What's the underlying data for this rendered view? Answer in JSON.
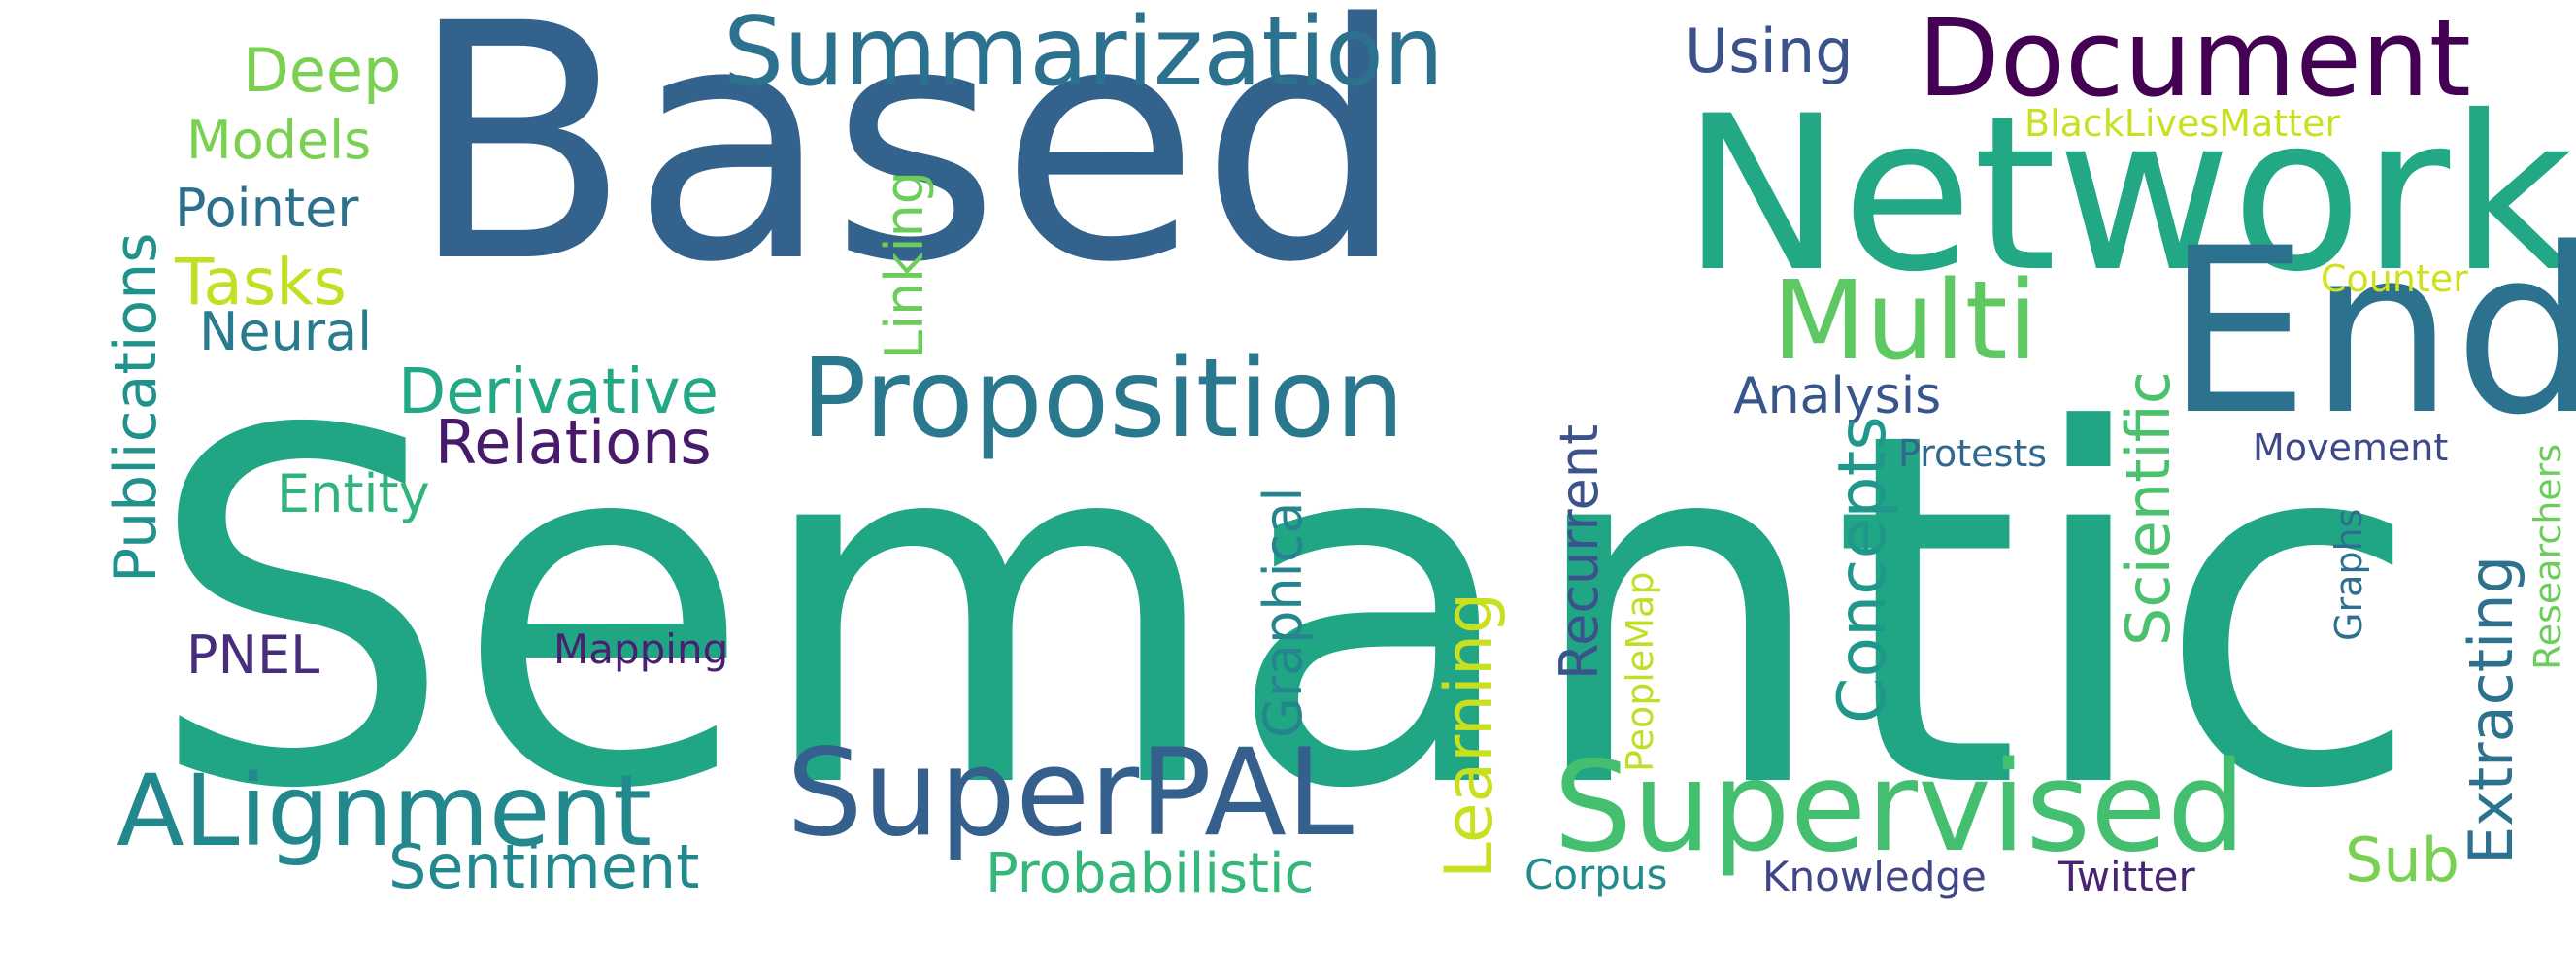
{
  "words": {
    "semantic": {
      "text": "Semantic",
      "color": "#21a685"
    },
    "based": {
      "text": "Based",
      "color": "#33638d"
    },
    "network": {
      "text": "Network",
      "color": "#22a884"
    },
    "end": {
      "text": "End",
      "color": "#2c728e"
    },
    "document": {
      "text": "Document",
      "color": "#440154"
    },
    "summarization": {
      "text": "Summarization",
      "color": "#2c728e"
    },
    "proposition": {
      "text": "Proposition",
      "color": "#2a788e"
    },
    "multi": {
      "text": "Multi",
      "color": "#5ec962"
    },
    "using": {
      "text": "Using",
      "color": "#3b528b"
    },
    "blacklivesmatter": {
      "text": "BlackLivesMatter",
      "color": "#c8e020"
    },
    "counter": {
      "text": "Counter",
      "color": "#d0e11c"
    },
    "movement": {
      "text": "Movement",
      "color": "#3e4989"
    },
    "analysis": {
      "text": "Analysis",
      "color": "#39568c"
    },
    "protests": {
      "text": "Protests",
      "color": "#31688e"
    },
    "deep": {
      "text": "Deep",
      "color": "#7ad151"
    },
    "models": {
      "text": "Models",
      "color": "#7ad151"
    },
    "pointer": {
      "text": "Pointer",
      "color": "#2d708e"
    },
    "tasks": {
      "text": "Tasks",
      "color": "#c2df23"
    },
    "neural": {
      "text": "Neural",
      "color": "#297b8e"
    },
    "derivative": {
      "text": "Derivative",
      "color": "#22a884"
    },
    "relations": {
      "text": "Relations",
      "color": "#481a6c"
    },
    "entity": {
      "text": "Entity",
      "color": "#2fb47c"
    },
    "pnel": {
      "text": "PNEL",
      "color": "#472d7b"
    },
    "mapping": {
      "text": "Mapping",
      "color": "#482173"
    },
    "alignment": {
      "text": "ALignment",
      "color": "#23888e"
    },
    "superpal": {
      "text": "SuperPAL",
      "color": "#355f8d"
    },
    "sentiment": {
      "text": "Sentiment",
      "color": "#23888e"
    },
    "probabilistic": {
      "text": "Probabilistic",
      "color": "#35b779"
    },
    "supervised": {
      "text": "Supervised",
      "color": "#44bf70"
    },
    "corpus": {
      "text": "Corpus",
      "color": "#228c8d"
    },
    "knowledge": {
      "text": "Knowledge",
      "color": "#404688"
    },
    "twitter": {
      "text": "Twitter",
      "color": "#482475"
    },
    "sub": {
      "text": "Sub",
      "color": "#7ad151"
    },
    "publications": {
      "text": "Publications",
      "color": "#21918c"
    },
    "linking": {
      "text": "Linking",
      "color": "#6ccd5a"
    },
    "learning": {
      "text": "Learning",
      "color": "#c8e020"
    },
    "graphical": {
      "text": "Graphical",
      "color": "#25858e"
    },
    "recurrent": {
      "text": "Recurrent",
      "color": "#3b528b"
    },
    "concepts": {
      "text": "Concepts",
      "color": "#1f988b"
    },
    "peoplemap": {
      "text": "PeopleMap",
      "color": "#bddf26"
    },
    "scientific": {
      "text": "Scientific",
      "color": "#4ac16d"
    },
    "extracting": {
      "text": "Extracting",
      "color": "#2c728e"
    },
    "graphs": {
      "text": "Graphs",
      "color": "#2e6e8e"
    },
    "researchers": {
      "text": "Researchers",
      "color": "#6ccd5a"
    }
  }
}
